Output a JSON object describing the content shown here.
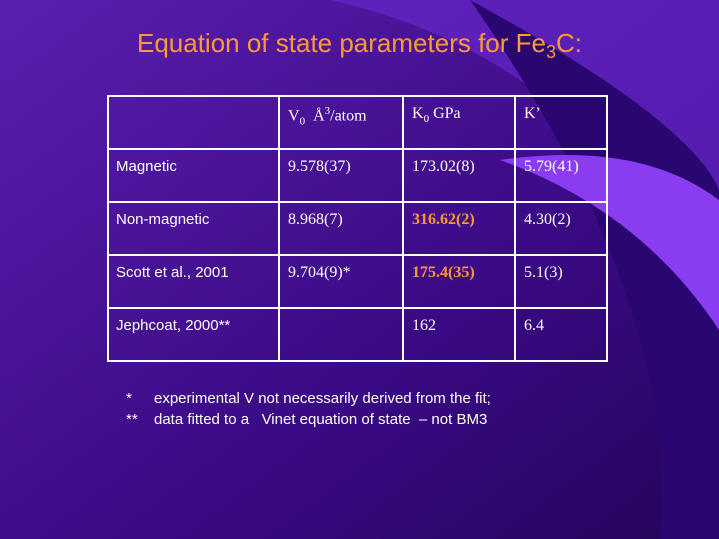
{
  "title": {
    "text": "Equation of state parameters for Fe",
    "sub": "3",
    "tail": "C:"
  },
  "table": {
    "header": {
      "v": {
        "main": "V",
        "sub": "0",
        "unit": "Å",
        "sup": "3",
        "tail": "/atom"
      },
      "k0": {
        "main": "K",
        "sub": "0",
        "unit": "GPa"
      },
      "kp": {
        "main": "K’"
      }
    },
    "rows": [
      {
        "label": "Magnetic",
        "v": "9.578(37)",
        "k0": "173.02(8)",
        "kp": "5.79(41)"
      },
      {
        "label": "Non-magnetic",
        "v": "8.968(7)",
        "k0": "316.62(2)",
        "kp": "4.30(2)",
        "k0_emphasis": true
      },
      {
        "label": "Scott et al., 2001",
        "v": "9.704(9)*",
        "k0": "175.4(35)",
        "kp": "5.1(3)",
        "k0_emphasis": true
      },
      {
        "label": "Jephcoat, 2000**",
        "k0": "162",
        "kp": "6.4"
      }
    ]
  },
  "notes": [
    {
      "marker": "*",
      "text": "experimental V not necessarily derived from the fit;"
    },
    {
      "marker": "**",
      "text": "data fitted to a   Vinet equation of state  – not BM3"
    }
  ]
}
